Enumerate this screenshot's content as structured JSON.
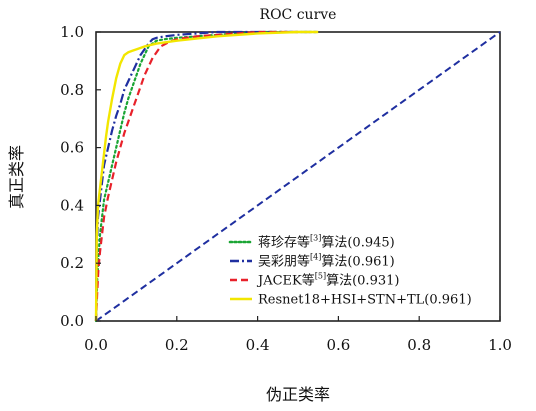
{
  "chart_data": {
    "type": "line",
    "title": "ROC curve",
    "xlabel": "伪正类率",
    "ylabel": "真正类率",
    "xlim": [
      0.0,
      1.0
    ],
    "ylim": [
      0.0,
      1.0
    ],
    "xticks": [
      "0.0",
      "0.2",
      "0.4",
      "0.6",
      "0.8",
      "1.0"
    ],
    "yticks": [
      "0.0",
      "0.2",
      "0.4",
      "0.6",
      "0.8",
      "1.0"
    ],
    "grid": false,
    "legend_position": "lower-right",
    "diagonal": {
      "x": [
        0.0,
        1.0
      ],
      "y": [
        0.0,
        1.0
      ],
      "color": "#1f2fa0",
      "style": "dashed"
    },
    "series": [
      {
        "name": "蒋珍存等[3]算法(0.945)",
        "legend_main": "蒋珍存等",
        "legend_ref": "[3]",
        "legend_tail": "算法(0.945)",
        "color": "#1aa534",
        "style": "dotted",
        "x": [
          0.0,
          0.003,
          0.006,
          0.01,
          0.015,
          0.02,
          0.03,
          0.04,
          0.05,
          0.06,
          0.07,
          0.08,
          0.09,
          0.1,
          0.11,
          0.12,
          0.13,
          0.14,
          0.15,
          0.17,
          0.2,
          0.25,
          0.3,
          0.35,
          0.4,
          0.5,
          0.55
        ],
        "y": [
          0.0,
          0.14,
          0.22,
          0.3,
          0.36,
          0.42,
          0.48,
          0.54,
          0.6,
          0.66,
          0.72,
          0.77,
          0.81,
          0.85,
          0.89,
          0.92,
          0.95,
          0.96,
          0.97,
          0.975,
          0.98,
          0.985,
          0.99,
          0.995,
          1.0,
          1.0,
          1.0
        ]
      },
      {
        "name": "吴彩朋等[4]算法(0.961)",
        "legend_main": "吴彩朋等",
        "legend_ref": "[4]",
        "legend_tail": "算法(0.961)",
        "color": "#1f2fa0",
        "style": "dashdot",
        "x": [
          0.0,
          0.002,
          0.005,
          0.01,
          0.015,
          0.02,
          0.03,
          0.04,
          0.05,
          0.06,
          0.07,
          0.08,
          0.09,
          0.1,
          0.11,
          0.12,
          0.13,
          0.14,
          0.15,
          0.17,
          0.2,
          0.25,
          0.3,
          0.35,
          0.4,
          0.55
        ],
        "y": [
          0.0,
          0.25,
          0.36,
          0.42,
          0.48,
          0.54,
          0.6,
          0.66,
          0.71,
          0.75,
          0.8,
          0.83,
          0.86,
          0.89,
          0.92,
          0.94,
          0.96,
          0.975,
          0.98,
          0.985,
          0.99,
          0.995,
          1.0,
          1.0,
          1.0,
          1.0
        ]
      },
      {
        "name": "JACEK等[5]算法(0.931)",
        "legend_main": "JACEK等",
        "legend_ref": "[5]",
        "legend_tail": "算法(0.931)",
        "color": "#e8212a",
        "style": "dashed",
        "x": [
          0.0,
          0.003,
          0.006,
          0.01,
          0.015,
          0.02,
          0.03,
          0.04,
          0.05,
          0.06,
          0.07,
          0.08,
          0.09,
          0.1,
          0.11,
          0.12,
          0.13,
          0.14,
          0.15,
          0.16,
          0.18,
          0.2,
          0.25,
          0.3,
          0.35,
          0.4,
          0.5
        ],
        "y": [
          0.0,
          0.1,
          0.18,
          0.24,
          0.3,
          0.36,
          0.43,
          0.49,
          0.55,
          0.6,
          0.65,
          0.69,
          0.73,
          0.77,
          0.81,
          0.85,
          0.88,
          0.91,
          0.93,
          0.95,
          0.965,
          0.975,
          0.985,
          0.99,
          0.995,
          1.0,
          1.0
        ]
      },
      {
        "name": "Resnet18+HSI+STN+TL(0.961)",
        "legend_main": "Resnet18+HSI+STN+TL(0.961)",
        "legend_ref": "",
        "legend_tail": "",
        "color": "#f2e600",
        "style": "solid",
        "x": [
          0.0,
          0.002,
          0.005,
          0.01,
          0.015,
          0.02,
          0.025,
          0.03,
          0.04,
          0.05,
          0.06,
          0.07,
          0.08,
          0.09,
          0.1,
          0.12,
          0.15,
          0.2,
          0.3,
          0.4,
          0.5,
          0.55
        ],
        "y": [
          0.0,
          0.3,
          0.4,
          0.46,
          0.52,
          0.58,
          0.64,
          0.69,
          0.77,
          0.84,
          0.89,
          0.92,
          0.93,
          0.935,
          0.94,
          0.95,
          0.96,
          0.97,
          0.985,
          0.995,
          1.0,
          1.0
        ]
      }
    ]
  }
}
